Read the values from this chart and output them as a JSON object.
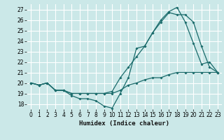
{
  "xlabel": "Humidex (Indice chaleur)",
  "bg_color": "#cbe8e8",
  "grid_color": "#ffffff",
  "line_color": "#1a6b6b",
  "xlim": [
    -0.5,
    23.5
  ],
  "ylim": [
    17.5,
    27.5
  ],
  "yticks": [
    18,
    19,
    20,
    21,
    22,
    23,
    24,
    25,
    26,
    27
  ],
  "xticks": [
    0,
    1,
    2,
    3,
    4,
    5,
    6,
    7,
    8,
    9,
    10,
    11,
    12,
    13,
    14,
    15,
    16,
    17,
    18,
    19,
    20,
    21,
    22,
    23
  ],
  "line1_x": [
    0,
    1,
    2,
    3,
    4,
    5,
    6,
    7,
    8,
    9,
    10,
    11,
    12,
    13,
    14,
    15,
    16,
    17,
    18,
    19,
    20,
    21,
    22,
    23
  ],
  "line1_y": [
    20.0,
    19.8,
    20.0,
    19.3,
    19.3,
    18.8,
    18.5,
    18.5,
    18.3,
    17.8,
    17.6,
    19.0,
    20.5,
    23.3,
    23.5,
    24.8,
    26.0,
    26.8,
    27.2,
    25.8,
    23.8,
    21.8,
    22.0,
    21.0
  ],
  "line2_x": [
    0,
    1,
    2,
    3,
    4,
    5,
    6,
    7,
    8,
    9,
    10,
    11,
    12,
    13,
    14,
    15,
    16,
    17,
    18,
    19,
    20,
    21,
    22,
    23
  ],
  "line2_y": [
    20.0,
    19.8,
    20.0,
    19.3,
    19.3,
    19.0,
    19.0,
    19.0,
    19.0,
    19.0,
    19.2,
    20.5,
    21.5,
    22.5,
    23.5,
    24.8,
    25.8,
    26.7,
    26.5,
    26.5,
    25.8,
    23.5,
    21.5,
    21.0
  ],
  "line3_x": [
    0,
    1,
    2,
    3,
    4,
    5,
    6,
    7,
    8,
    9,
    10,
    11,
    12,
    13,
    14,
    15,
    16,
    17,
    18,
    19,
    20,
    21,
    22,
    23
  ],
  "line3_y": [
    20.0,
    19.8,
    20.0,
    19.3,
    19.3,
    19.0,
    19.0,
    19.0,
    19.0,
    19.0,
    19.0,
    19.3,
    19.8,
    20.0,
    20.3,
    20.5,
    20.5,
    20.8,
    21.0,
    21.0,
    21.0,
    21.0,
    21.0,
    21.0
  ],
  "tick_fontsize": 5.5,
  "xlabel_fontsize": 6.5
}
